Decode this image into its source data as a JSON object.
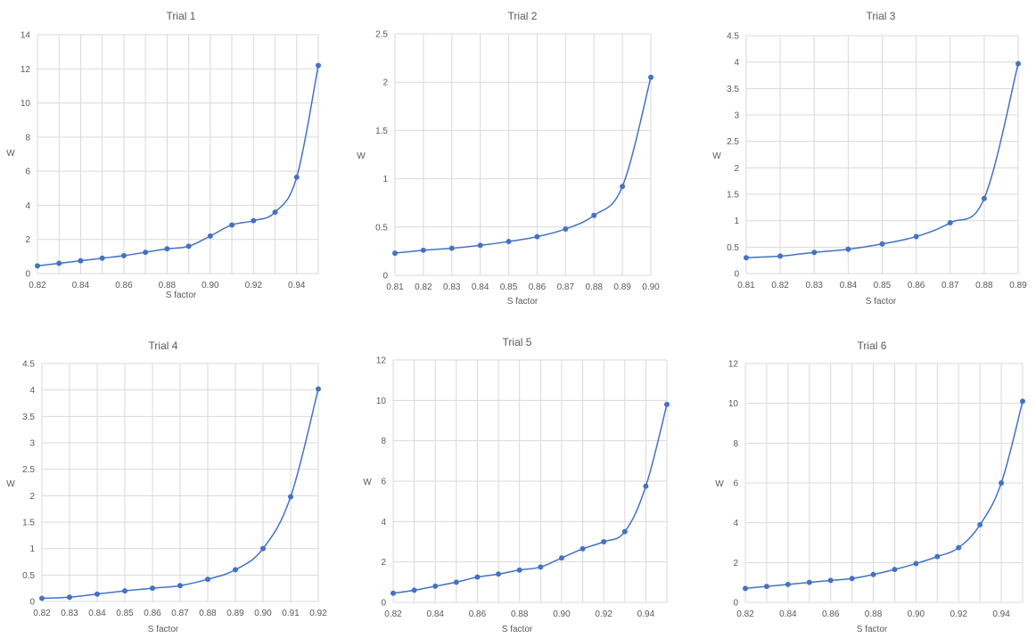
{
  "chart_data": [
    {
      "type": "line",
      "title": "Trial 1",
      "xlabel": "S factor",
      "ylabel": "W",
      "xticks": [
        "0.82",
        "0.84",
        "0.86",
        "0.88",
        "0.90",
        "0.92",
        "0.94"
      ],
      "xtick_values": [
        0.82,
        0.84,
        0.86,
        0.88,
        0.9,
        0.92,
        0.94
      ],
      "xlim": [
        0.82,
        0.95
      ],
      "yticks": [
        "0",
        "2",
        "4",
        "6",
        "8",
        "10",
        "12",
        "14"
      ],
      "ylim": [
        0,
        14
      ],
      "grid": true,
      "x": [
        0.82,
        0.83,
        0.84,
        0.85,
        0.86,
        0.87,
        0.88,
        0.89,
        0.9,
        0.91,
        0.92,
        0.93,
        0.94,
        0.95
      ],
      "values": [
        0.45,
        0.6,
        0.75,
        0.9,
        1.05,
        1.25,
        1.45,
        1.6,
        2.2,
        2.85,
        3.1,
        3.6,
        5.65,
        12.2
      ]
    },
    {
      "type": "line",
      "title": "Trial 2",
      "xlabel": "S factor",
      "ylabel": "W",
      "xticks": [
        "0.81",
        "0.82",
        "0.83",
        "0.84",
        "0.85",
        "0.86",
        "0.87",
        "0.88",
        "0.89",
        "0.90"
      ],
      "xtick_values": [
        0.81,
        0.82,
        0.83,
        0.84,
        0.85,
        0.86,
        0.87,
        0.88,
        0.89,
        0.9
      ],
      "xlim": [
        0.81,
        0.9
      ],
      "yticks": [
        "0",
        "0.5",
        "1",
        "1.5",
        "2",
        "2.5"
      ],
      "ylim": [
        0,
        2.5
      ],
      "grid": true,
      "x": [
        0.81,
        0.82,
        0.83,
        0.84,
        0.85,
        0.86,
        0.87,
        0.88,
        0.89,
        0.9
      ],
      "values": [
        0.23,
        0.26,
        0.28,
        0.31,
        0.35,
        0.4,
        0.48,
        0.62,
        0.92,
        2.05
      ]
    },
    {
      "type": "line",
      "title": "Trial 3",
      "xlabel": "S factor",
      "ylabel": "W",
      "xticks": [
        "0.81",
        "0.82",
        "0.83",
        "0.84",
        "0.85",
        "0.86",
        "0.87",
        "0.88",
        "0.89"
      ],
      "xtick_values": [
        0.81,
        0.82,
        0.83,
        0.84,
        0.85,
        0.86,
        0.87,
        0.88,
        0.89
      ],
      "xlim": [
        0.81,
        0.89
      ],
      "yticks": [
        "0",
        "0.5",
        "1",
        "1.5",
        "2",
        "2.5",
        "3",
        "3.5",
        "4",
        "4.5"
      ],
      "ylim": [
        0,
        4.5
      ],
      "grid": true,
      "x": [
        0.81,
        0.82,
        0.83,
        0.84,
        0.85,
        0.86,
        0.87,
        0.88,
        0.89
      ],
      "values": [
        0.3,
        0.33,
        0.4,
        0.46,
        0.56,
        0.7,
        0.96,
        1.42,
        3.97
      ]
    },
    {
      "type": "line",
      "title": "Trial 4",
      "xlabel": "S factor",
      "ylabel": "W",
      "xticks": [
        "0.82",
        "0.83",
        "0.84",
        "0.85",
        "0.86",
        "0.87",
        "0.88",
        "0.89",
        "0.90",
        "0.91",
        "0.92"
      ],
      "xtick_values": [
        0.82,
        0.83,
        0.84,
        0.85,
        0.86,
        0.87,
        0.88,
        0.89,
        0.9,
        0.91,
        0.92
      ],
      "xlim": [
        0.82,
        0.92
      ],
      "yticks": [
        "0",
        "0.5",
        "1",
        "1.5",
        "2",
        "2.5",
        "3",
        "3.5",
        "4",
        "4.5"
      ],
      "ylim": [
        0,
        4.5
      ],
      "grid": true,
      "x": [
        0.82,
        0.83,
        0.84,
        0.85,
        0.86,
        0.87,
        0.88,
        0.89,
        0.9,
        0.91,
        0.92
      ],
      "values": [
        0.06,
        0.08,
        0.14,
        0.2,
        0.25,
        0.3,
        0.42,
        0.6,
        1.0,
        1.98,
        4.02
      ]
    },
    {
      "type": "line",
      "title": "Trial 5",
      "xlabel": "S factor",
      "ylabel": "W",
      "xticks": [
        "0.82",
        "0.84",
        "0.86",
        "0.88",
        "0.90",
        "0.92",
        "0.94"
      ],
      "xtick_values": [
        0.82,
        0.84,
        0.86,
        0.88,
        0.9,
        0.92,
        0.94
      ],
      "xlim": [
        0.82,
        0.95
      ],
      "yticks": [
        "0",
        "2",
        "4",
        "6",
        "8",
        "10",
        "12"
      ],
      "ylim": [
        0,
        12
      ],
      "grid": true,
      "x": [
        0.82,
        0.83,
        0.84,
        0.85,
        0.86,
        0.87,
        0.88,
        0.89,
        0.9,
        0.91,
        0.92,
        0.93,
        0.94,
        0.95
      ],
      "values": [
        0.45,
        0.6,
        0.8,
        1.0,
        1.25,
        1.4,
        1.6,
        1.75,
        2.2,
        2.65,
        3.0,
        3.5,
        5.75,
        9.8
      ]
    },
    {
      "type": "line",
      "title": "Trial 6",
      "xlabel": "S factor",
      "ylabel": "W",
      "xticks": [
        "0.82",
        "0.84",
        "0.86",
        "0.88",
        "0.90",
        "0.92",
        "0.94"
      ],
      "xtick_values": [
        0.82,
        0.84,
        0.86,
        0.88,
        0.9,
        0.92,
        0.94
      ],
      "xlim": [
        0.82,
        0.95
      ],
      "yticks": [
        "0",
        "2",
        "4",
        "6",
        "8",
        "10",
        "12"
      ],
      "ylim": [
        0,
        12
      ],
      "grid": true,
      "x": [
        0.82,
        0.83,
        0.84,
        0.85,
        0.86,
        0.87,
        0.88,
        0.89,
        0.9,
        0.91,
        0.92,
        0.93,
        0.94,
        0.95
      ],
      "values": [
        0.7,
        0.8,
        0.9,
        1.0,
        1.1,
        1.2,
        1.4,
        1.65,
        1.95,
        2.3,
        2.75,
        3.9,
        6.0,
        10.1
      ]
    }
  ],
  "colors": {
    "series": "#4472c4",
    "grid": "#d9d9d9",
    "text": "#595959"
  }
}
